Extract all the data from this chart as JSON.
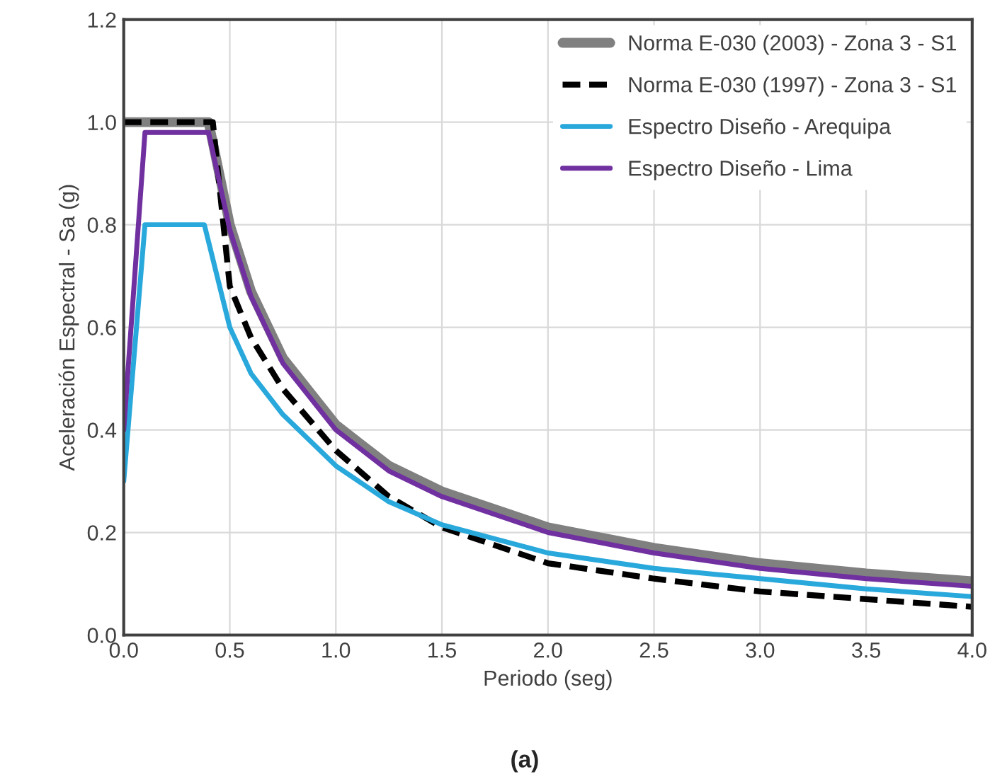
{
  "chart_data": {
    "type": "line",
    "xlabel": "Periodo (seg)",
    "ylabel": "Aceleración Espectral - Sa (g)",
    "xlim": [
      0,
      4
    ],
    "xticks": [
      {
        "value": 0,
        "label": "0.0"
      },
      0.5,
      {
        "value": 1,
        "label": "1.0"
      },
      1.5,
      {
        "value": 2,
        "label": "2.0"
      },
      2.5,
      {
        "value": 3,
        "label": "3.0"
      },
      3.5,
      {
        "value": 4,
        "label": "4.0"
      }
    ],
    "ylim": [
      0,
      1.2
    ],
    "yticks": [
      {
        "value": 0,
        "label": "0.0"
      },
      0.2,
      0.4,
      0.6,
      0.8,
      {
        "value": 1,
        "label": "1.0"
      },
      1.2
    ],
    "grid": true,
    "legend": "top right",
    "marker": "none",
    "annotations": [
      "(a)"
    ],
    "series": [
      {
        "name": "Norma E-030 (2003) - Zona 3 - S1",
        "color": "#808080",
        "line_style": "solid",
        "x": [
          0,
          0.4,
          0.5,
          0.6,
          0.75,
          1,
          1.25,
          1.5,
          2,
          2.5,
          3,
          3.5,
          4
        ],
        "values": [
          1.0,
          1.0,
          0.8,
          0.67,
          0.54,
          0.41,
          0.33,
          0.28,
          0.21,
          0.17,
          0.14,
          0.12,
          0.105
        ]
      },
      {
        "name": "Norma E-030 (1997) - Zona 3 - S1",
        "color": "#000000",
        "line_style": "dashed",
        "x": [
          0,
          0.42,
          0.5,
          0.6,
          0.75,
          1,
          1.25,
          1.5,
          2,
          2.5,
          3,
          3.5,
          4
        ],
        "values": [
          1.0,
          1.0,
          0.68,
          0.58,
          0.48,
          0.36,
          0.27,
          0.21,
          0.14,
          0.11,
          0.085,
          0.07,
          0.055
        ]
      },
      {
        "name": "Espectro Diseño - Arequipa",
        "color": "#29a8dc",
        "line_style": "solid",
        "x": [
          0,
          0.1,
          0.38,
          0.5,
          0.6,
          0.75,
          1,
          1.25,
          1.5,
          2,
          2.5,
          3,
          3.5,
          4
        ],
        "values": [
          0.3,
          0.8,
          0.8,
          0.6,
          0.51,
          0.43,
          0.33,
          0.26,
          0.215,
          0.16,
          0.13,
          0.11,
          0.09,
          0.075
        ]
      },
      {
        "name": "Espectro Diseño - Lima",
        "color": "#7030a0",
        "line_style": "solid",
        "x": [
          0,
          0.1,
          0.4,
          0.5,
          0.6,
          0.75,
          1,
          1.25,
          1.5,
          2,
          2.5,
          3,
          3.5,
          4
        ],
        "values": [
          0.4,
          0.98,
          0.98,
          0.79,
          0.66,
          0.53,
          0.4,
          0.32,
          0.27,
          0.2,
          0.16,
          0.13,
          0.11,
          0.095
        ]
      }
    ]
  }
}
